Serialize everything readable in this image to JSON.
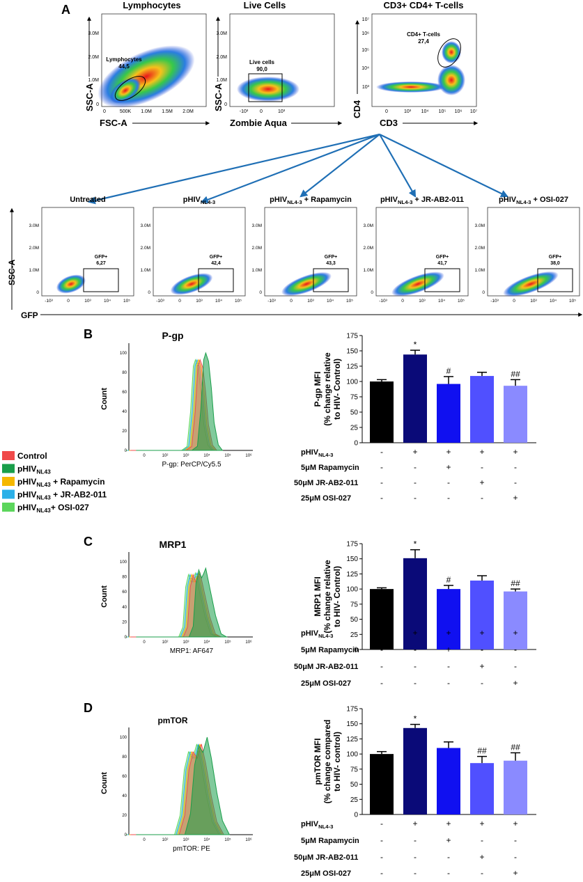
{
  "panel_labels": {
    "a": "A",
    "b": "B",
    "c": "C",
    "d": "D"
  },
  "flow_plots": [
    {
      "title": "Lymphocytes",
      "xlabel": "FSC-A",
      "ylabel": "SSC-A",
      "xticks": [
        "0",
        "500K",
        "1.0M",
        "1.5M",
        "2.0M"
      ],
      "yticks": [
        "0",
        "1.0M",
        "2.0M",
        "3.0M"
      ],
      "gate_label": "Lymphocytes",
      "gate_value": "44,5"
    },
    {
      "title": "Live Cells",
      "xlabel": "Zombie Aqua",
      "ylabel": "SSC-A",
      "xticks": [
        "-10³",
        "0",
        "10³"
      ],
      "yticks": [
        "0",
        "1.0M",
        "2.0M",
        "3.0M"
      ],
      "gate_label": "Live cells",
      "gate_value": "90,0"
    },
    {
      "title": "CD3+ CD4+ T-cells",
      "xlabel": "CD3",
      "ylabel": "CD4",
      "xticks": [
        "0",
        "10³",
        "10⁴",
        "10⁵",
        "10⁶",
        "10⁷"
      ],
      "yticks": [
        "10³",
        "10⁴",
        "10⁵",
        "10⁶",
        "10⁷"
      ],
      "gate_label": "CD4+ T-cells",
      "gate_value": "27,4"
    }
  ],
  "gfp_plots": [
    {
      "title": "Untreated",
      "gate_label": "GFP+",
      "gate_value": "6,27"
    },
    {
      "title": "pHIVNL4-3",
      "gate_label": "GFP+",
      "gate_value": "42,4"
    },
    {
      "title": "pHIVNL4-3 + Rapamycin",
      "gate_label": "GFP+",
      "gate_value": "43,3"
    },
    {
      "title": "pHIVNL4-3 + JR-AB2-011",
      "gate_label": "GFP+",
      "gate_value": "41,7"
    },
    {
      "title": "pHIVNL4-3 + OSI-027",
      "gate_label": "GFP+",
      "gate_value": "38,0"
    }
  ],
  "gfp_axes": {
    "xlabel": "GFP",
    "ylabel": "SSC-A",
    "xticks": [
      "-10³",
      "0",
      "10³",
      "10⁴",
      "10⁵"
    ],
    "yticks": [
      "0",
      "1.0M",
      "2.0M",
      "3.0M"
    ]
  },
  "legend": [
    {
      "label": "Control",
      "color": "#f04a4a"
    },
    {
      "label": "pHIVNL43",
      "color": "#1a9e4a"
    },
    {
      "label": "pHIVNL43 + Rapamycin",
      "color": "#f5b800"
    },
    {
      "label": "pHIVNL43 + JR-AB2-011",
      "color": "#2bb0e8"
    },
    {
      "label": "pHIVNL43+ OSI-027",
      "color": "#5cd65c"
    }
  ],
  "subscript_text": {
    "hiv": "pHIV",
    "nl43": "NL43",
    "nl4_3": "NL4-3"
  },
  "histograms": [
    {
      "title": "P-gp",
      "xlabel": "P-gp: PerCP/Cy5.5",
      "ylabel": "Count",
      "yticks": [
        "0",
        "20",
        "40",
        "60",
        "80",
        "100"
      ],
      "xticks": [
        "0",
        "10²",
        "10³",
        "10⁴",
        "10⁵",
        "10⁶"
      ]
    },
    {
      "title": "MRP1",
      "xlabel": "MRP1: AF647",
      "ylabel": "Count",
      "yticks": [
        "0",
        "20",
        "40",
        "60",
        "80",
        "100"
      ],
      "xticks": [
        "0",
        "10²",
        "10³",
        "10⁴",
        "10⁵",
        "10⁶"
      ]
    },
    {
      "title": "pmTOR",
      "xlabel": "pmTOR: PE",
      "ylabel": "Count",
      "yticks": [
        "0",
        "20",
        "40",
        "60",
        "80",
        "100"
      ],
      "xticks": [
        "0",
        "10²",
        "10³",
        "10⁴",
        "10⁵",
        "10⁶"
      ]
    }
  ],
  "chart_data": [
    {
      "type": "bar",
      "panel": "B",
      "ylabel_lines": [
        "P-gp MFI",
        "(% change relative",
        "to HIV- Control)"
      ],
      "ylim": [
        0,
        175
      ],
      "yticks": [
        "0",
        "25",
        "50",
        "75",
        "100",
        "125",
        "150",
        "175"
      ],
      "categories": [
        "Control",
        "pHIVNL4-3",
        "pHIVNL4-3 + 5μM Rapamycin",
        "pHIVNL4-3 + 50μM JR-AB2-011",
        "pHIVNL4-3 + 25μM OSI-027"
      ],
      "values": [
        100,
        144,
        96,
        109,
        93
      ],
      "errors": [
        3,
        7,
        12,
        6,
        10
      ],
      "annotations": [
        "",
        "*",
        "#",
        "",
        "##"
      ],
      "colors": [
        "#000000",
        "#0a0a78",
        "#1010f0",
        "#5050ff",
        "#8a8aff"
      ],
      "treatment_rows": [
        {
          "label_pre": "pHIV",
          "label_sub": "NL4-3",
          "marks": [
            "-",
            "+",
            "+",
            "+",
            "+"
          ]
        },
        {
          "label_pre": "5μM Rapamycin",
          "label_sub": "",
          "marks": [
            "-",
            "-",
            "+",
            "-",
            "-"
          ]
        },
        {
          "label_pre": "50μM JR-AB2-011",
          "label_sub": "",
          "marks": [
            "-",
            "-",
            "-",
            "+",
            "-"
          ]
        },
        {
          "label_pre": "25μM OSI-027",
          "label_sub": "",
          "marks": [
            "-",
            "-",
            "-",
            "-",
            "+"
          ]
        }
      ]
    },
    {
      "type": "bar",
      "panel": "C",
      "ylabel_lines": [
        "MRP1 MFI",
        "(% change relative",
        "to HIV- Control)"
      ],
      "ylim": [
        0,
        175
      ],
      "yticks": [
        "0",
        "25",
        "50",
        "75",
        "100",
        "125",
        "150",
        "175"
      ],
      "categories": [
        "Control",
        "pHIVNL4-3",
        "pHIVNL4-3 + 5μM Rapamycin",
        "pHIVNL4-3 + 50μM JR-AB2-011",
        "pHIVNL4-3 + 25μM OSI-027"
      ],
      "values": [
        100,
        151,
        100,
        114,
        96
      ],
      "errors": [
        2,
        14,
        6,
        8,
        4
      ],
      "annotations": [
        "",
        "*",
        "#",
        "",
        "##"
      ],
      "colors": [
        "#000000",
        "#0a0a78",
        "#1010f0",
        "#5050ff",
        "#8a8aff"
      ],
      "treatment_rows": [
        {
          "label_pre": "pHIV",
          "label_sub": "NL4-3",
          "marks": [
            "-",
            "+",
            "+",
            "+",
            "+"
          ]
        },
        {
          "label_pre": "5μM Rapamycin",
          "label_sub": "",
          "marks": [
            "-",
            "-",
            "+",
            "-",
            "-"
          ]
        },
        {
          "label_pre": "50μM JR-AB2-011",
          "label_sub": "",
          "marks": [
            "-",
            "-",
            "-",
            "+",
            "-"
          ]
        },
        {
          "label_pre": "25μM OSI-027",
          "label_sub": "",
          "marks": [
            "-",
            "-",
            "-",
            "-",
            "+"
          ]
        }
      ]
    },
    {
      "type": "bar",
      "panel": "D",
      "ylabel_lines": [
        "pmTOR MFI",
        "(% change compared",
        "to HIV- control)"
      ],
      "ylim": [
        0,
        175
      ],
      "yticks": [
        "0",
        "25",
        "50",
        "75",
        "100",
        "125",
        "150",
        "175"
      ],
      "categories": [
        "Control",
        "pHIVNL4-3",
        "pHIVNL4-3 + 5μM Rapamycin",
        "pHIVNL4-3 + 50μM JR-AB2-011",
        "pHIVNL4-3 + 25μM OSI-027"
      ],
      "values": [
        100,
        143,
        110,
        85,
        89
      ],
      "errors": [
        4,
        6,
        10,
        11,
        13
      ],
      "annotations": [
        "",
        "*",
        "",
        "##",
        "##"
      ],
      "colors": [
        "#000000",
        "#0a0a78",
        "#1010f0",
        "#5050ff",
        "#8a8aff"
      ],
      "treatment_rows": [
        {
          "label_pre": "pHIV",
          "label_sub": "NL4-3",
          "marks": [
            "-",
            "+",
            "+",
            "+",
            "+"
          ]
        },
        {
          "label_pre": "5μM Rapamycin",
          "label_sub": "",
          "marks": [
            "-",
            "-",
            "+",
            "-",
            "-"
          ]
        },
        {
          "label_pre": "50μM JR-AB2-011",
          "label_sub": "",
          "marks": [
            "-",
            "-",
            "-",
            "+",
            "-"
          ]
        },
        {
          "label_pre": "25μM OSI-027",
          "label_sub": "",
          "marks": [
            "-",
            "-",
            "-",
            "-",
            "+"
          ]
        }
      ]
    }
  ]
}
